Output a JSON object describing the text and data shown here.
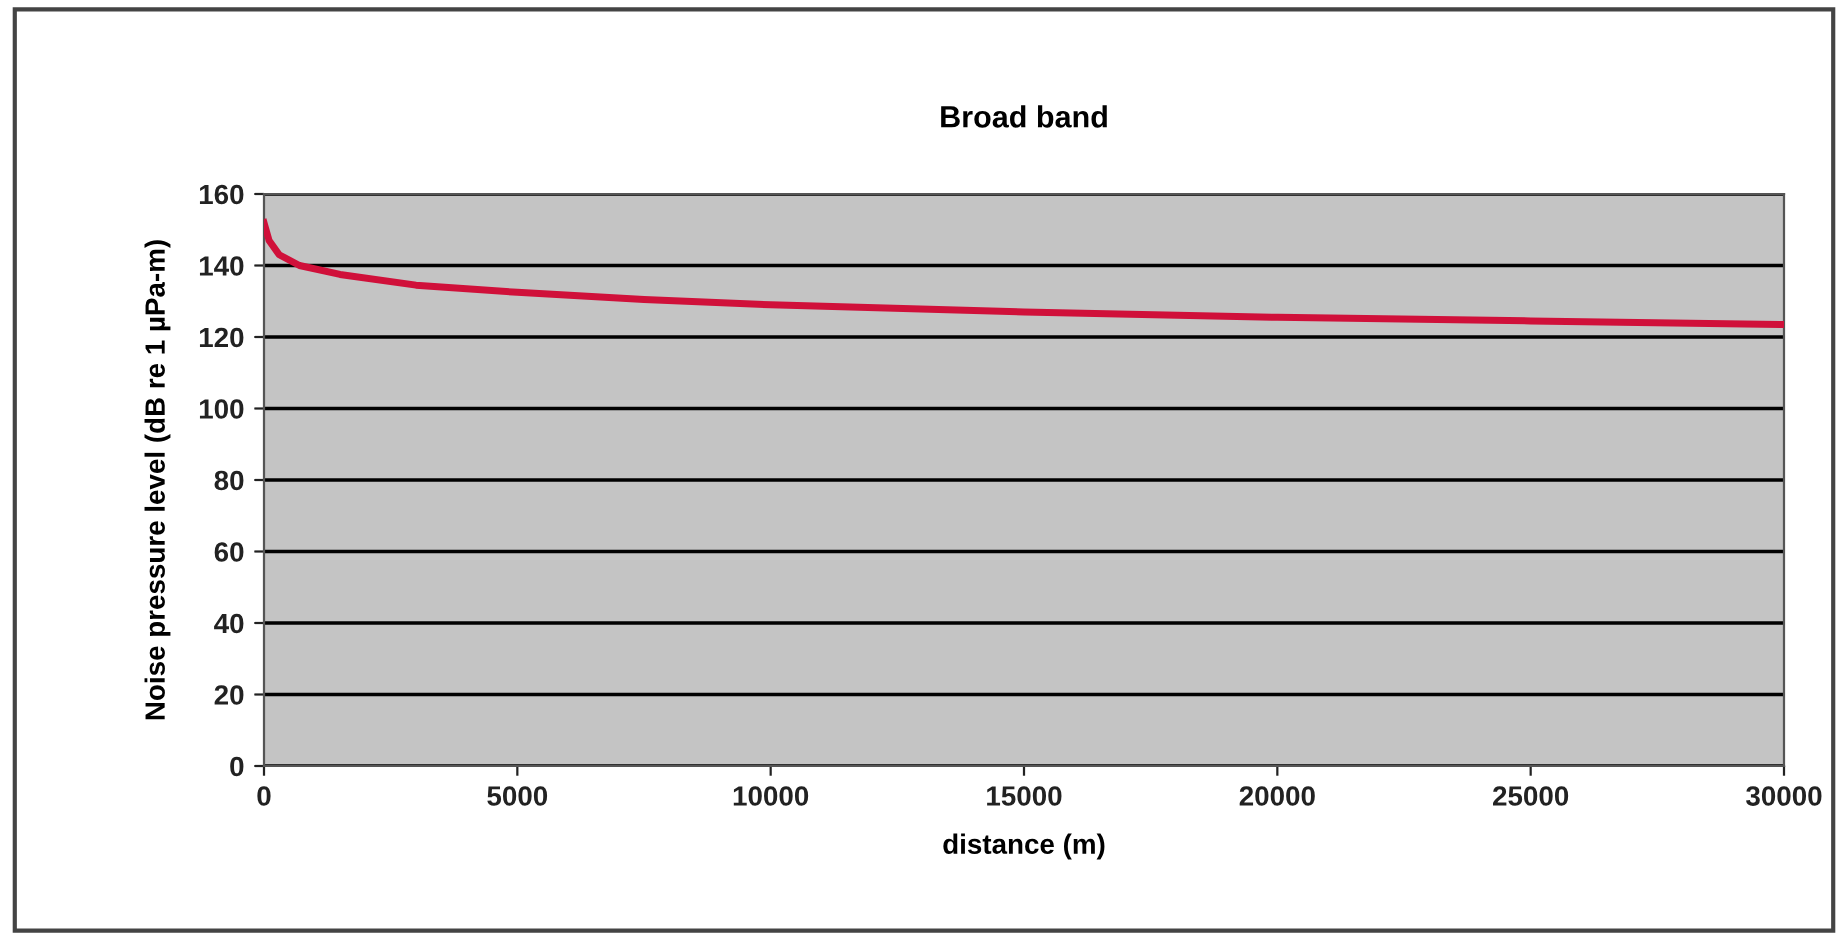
{
  "chart_data": {
    "type": "line",
    "title": "Broad band",
    "xlabel": "distance (m)",
    "ylabel": "Noise pressure level (dB re 1 µPa-m)",
    "x": [
      0,
      100,
      300,
      700,
      1500,
      3000,
      5000,
      7500,
      10000,
      15000,
      20000,
      25000,
      30000
    ],
    "series": [
      {
        "color": "#d0103a",
        "values": [
          152,
          147,
          143,
          140,
          137.5,
          134.5,
          132.5,
          130.5,
          129,
          127,
          125.5,
          124.5,
          123.5
        ]
      }
    ],
    "xlim": [
      0,
      30000
    ],
    "xticks": [
      0,
      5000,
      10000,
      15000,
      20000,
      25000,
      30000
    ],
    "ylim": [
      0,
      160
    ],
    "yticks": [
      0,
      20,
      40,
      60,
      80,
      100,
      120,
      140,
      160
    ],
    "grid": "y",
    "legend": false,
    "marker": "none",
    "line_style": "solid"
  }
}
